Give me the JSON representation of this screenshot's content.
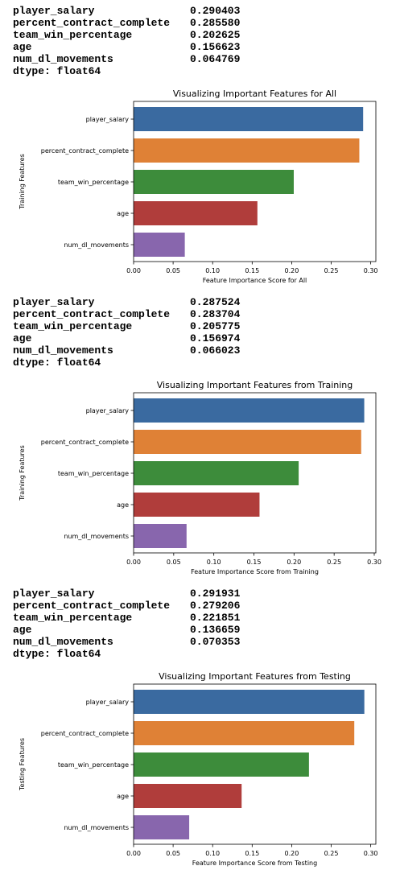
{
  "outputs": [
    {
      "rows": [
        {
          "name": "player_salary",
          "value": "0.290403"
        },
        {
          "name": "percent_contract_complete",
          "value": "0.285580"
        },
        {
          "name": "team_win_percentage",
          "value": "0.202625"
        },
        {
          "name": "age",
          "value": "0.156623"
        },
        {
          "name": "num_dl_movements",
          "value": "0.064769"
        }
      ],
      "dtype": "dtype: float64"
    },
    {
      "rows": [
        {
          "name": "player_salary",
          "value": "0.287524"
        },
        {
          "name": "percent_contract_complete",
          "value": "0.283704"
        },
        {
          "name": "team_win_percentage",
          "value": "0.205775"
        },
        {
          "name": "age",
          "value": "0.156974"
        },
        {
          "name": "num_dl_movements",
          "value": "0.066023"
        }
      ],
      "dtype": "dtype: float64"
    },
    {
      "rows": [
        {
          "name": "player_salary",
          "value": "0.291931"
        },
        {
          "name": "percent_contract_complete",
          "value": "0.279206"
        },
        {
          "name": "team_win_percentage",
          "value": "0.221851"
        },
        {
          "name": "age",
          "value": "0.136659"
        },
        {
          "name": "num_dl_movements",
          "value": "0.070353"
        }
      ],
      "dtype": "dtype: float64"
    }
  ],
  "colors": [
    "#3a6aa0",
    "#df8136",
    "#3d8c3b",
    "#b03d3b",
    "#8866ad"
  ],
  "chart_data": [
    {
      "type": "bar",
      "orientation": "horizontal",
      "title": "Visualizing Important Features for All",
      "xlabel": "Feature Importance Score for All",
      "ylabel": "Training Features",
      "categories": [
        "player_salary",
        "percent_contract_complete",
        "team_win_percentage",
        "age",
        "num_dl_movements"
      ],
      "values": [
        0.290403,
        0.28558,
        0.202625,
        0.156623,
        0.064769
      ],
      "xticks": [
        "0.00",
        "0.05",
        "0.10",
        "0.15",
        "0.20",
        "0.25",
        "0.30"
      ],
      "xlim": [
        0,
        0.3065
      ],
      "grid": false
    },
    {
      "type": "bar",
      "orientation": "horizontal",
      "title": "Visualizing Important Features from Training",
      "xlabel": "Feature Importance Score from Training",
      "ylabel": "Training Features",
      "categories": [
        "player_salary",
        "percent_contract_complete",
        "team_win_percentage",
        "age",
        "num_dl_movements"
      ],
      "values": [
        0.287524,
        0.283704,
        0.205775,
        0.156974,
        0.066023
      ],
      "xticks": [
        "0.00",
        "0.05",
        "0.10",
        "0.15",
        "0.20",
        "0.25",
        "0.30"
      ],
      "xlim": [
        0,
        0.302
      ],
      "grid": false
    },
    {
      "type": "bar",
      "orientation": "horizontal",
      "title": "Visualizing Important Features from Testing",
      "xlabel": "Feature Importance Score from Testing",
      "ylabel": "Testing Features",
      "categories": [
        "player_salary",
        "percent_contract_complete",
        "team_win_percentage",
        "age",
        "num_dl_movements"
      ],
      "values": [
        0.291931,
        0.279206,
        0.221851,
        0.136659,
        0.070353
      ],
      "xticks": [
        "0.00",
        "0.05",
        "0.10",
        "0.15",
        "0.20",
        "0.25",
        "0.30"
      ],
      "xlim": [
        0,
        0.3065
      ],
      "grid": false
    }
  ]
}
